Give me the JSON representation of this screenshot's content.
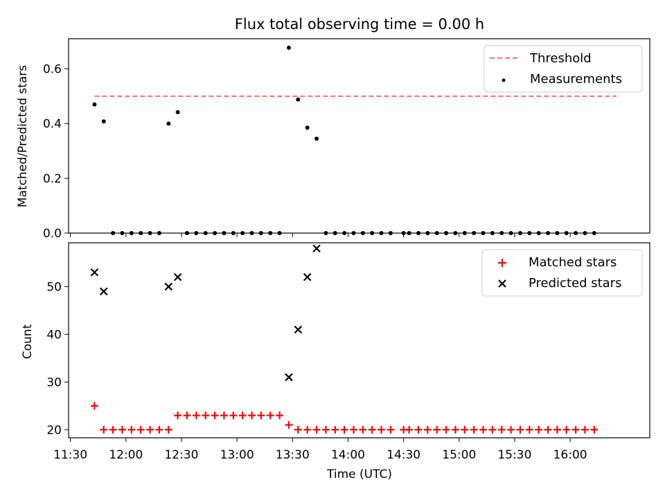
{
  "chart_data": {
    "type": "scatter",
    "title": "Flux total observing time = 0.00 h",
    "xlabel": "Time (UTC)",
    "x_tick_labels": [
      "11:30",
      "12:00",
      "12:30",
      "13:00",
      "13:30",
      "14:00",
      "14:30",
      "15:00",
      "15:30",
      "16:00"
    ],
    "x_tick_values": [
      "11:30",
      "12:00",
      "12:30",
      "13:00",
      "13:30",
      "14:00",
      "14:30",
      "15:00",
      "15:30",
      "16:00"
    ],
    "xlim": [
      "11:29",
      "16:43"
    ],
    "top_panel": {
      "ylabel": "Matched/Predicted stars",
      "ylim": [
        0,
        0.71
      ],
      "y_ticks": [
        0.0,
        0.2,
        0.4,
        0.6
      ],
      "y_tick_labels": [
        "0.0",
        "0.2",
        "0.4",
        "0.6"
      ],
      "legend_position": "upper right",
      "threshold": {
        "name": "Threshold",
        "value": 0.5,
        "x_start": "11:43",
        "x_end": "16:25",
        "color": "#ff6b6b",
        "style": "dashed"
      },
      "measurements": {
        "name": "Measurements",
        "color": "#000000",
        "points": [
          [
            "11:43",
            0.47
          ],
          [
            "11:48",
            0.408
          ],
          [
            "11:53",
            0.0
          ],
          [
            "11:58",
            0.0
          ],
          [
            "12:03",
            0.0
          ],
          [
            "12:08",
            0.0
          ],
          [
            "12:13",
            0.0
          ],
          [
            "12:18",
            0.0
          ],
          [
            "12:23",
            0.4
          ],
          [
            "12:28",
            0.442
          ],
          [
            "12:33",
            0.0
          ],
          [
            "12:38",
            0.0
          ],
          [
            "12:43",
            0.0
          ],
          [
            "12:48",
            0.0
          ],
          [
            "12:53",
            0.0
          ],
          [
            "12:58",
            0.0
          ],
          [
            "13:03",
            0.0
          ],
          [
            "13:08",
            0.0
          ],
          [
            "13:13",
            0.0
          ],
          [
            "13:18",
            0.0
          ],
          [
            "13:23",
            0.0
          ],
          [
            "13:28",
            0.677
          ],
          [
            "13:33",
            0.488
          ],
          [
            "13:38",
            0.385
          ],
          [
            "13:43",
            0.345
          ],
          [
            "13:48",
            0.0
          ],
          [
            "13:53",
            0.0
          ],
          [
            "13:58",
            0.0
          ],
          [
            "14:03",
            0.0
          ],
          [
            "14:08",
            0.0
          ],
          [
            "14:13",
            0.0
          ],
          [
            "14:18",
            0.0
          ],
          [
            "14:23",
            0.0
          ],
          [
            "14:30",
            0.0
          ],
          [
            "14:33",
            0.0
          ],
          [
            "14:38",
            0.0
          ],
          [
            "14:43",
            0.0
          ],
          [
            "14:48",
            0.0
          ],
          [
            "14:53",
            0.0
          ],
          [
            "14:58",
            0.0
          ],
          [
            "15:03",
            0.0
          ],
          [
            "15:08",
            0.0
          ],
          [
            "15:13",
            0.0
          ],
          [
            "15:18",
            0.0
          ],
          [
            "15:23",
            0.0
          ],
          [
            "15:28",
            0.0
          ],
          [
            "15:33",
            0.0
          ],
          [
            "15:38",
            0.0
          ],
          [
            "15:43",
            0.0
          ],
          [
            "15:48",
            0.0
          ],
          [
            "15:53",
            0.0
          ],
          [
            "15:58",
            0.0
          ],
          [
            "16:03",
            0.0
          ],
          [
            "16:08",
            0.0
          ],
          [
            "16:13",
            0.0
          ]
        ]
      }
    },
    "bottom_panel": {
      "ylabel": "Count",
      "ylim": [
        18.3,
        59.2
      ],
      "y_ticks": [
        20,
        30,
        40,
        50
      ],
      "y_tick_labels": [
        "20",
        "30",
        "40",
        "50"
      ],
      "legend_position": "upper right",
      "matched": {
        "name": "Matched stars",
        "color": "#ff0000",
        "marker": "+",
        "points": [
          [
            "11:43",
            25
          ],
          [
            "11:48",
            20
          ],
          [
            "11:53",
            20
          ],
          [
            "11:58",
            20
          ],
          [
            "12:03",
            20
          ],
          [
            "12:08",
            20
          ],
          [
            "12:13",
            20
          ],
          [
            "12:18",
            20
          ],
          [
            "12:23",
            20
          ],
          [
            "12:28",
            23
          ],
          [
            "12:33",
            23
          ],
          [
            "12:38",
            23
          ],
          [
            "12:43",
            23
          ],
          [
            "12:48",
            23
          ],
          [
            "12:53",
            23
          ],
          [
            "12:58",
            23
          ],
          [
            "13:03",
            23
          ],
          [
            "13:08",
            23
          ],
          [
            "13:13",
            23
          ],
          [
            "13:18",
            23
          ],
          [
            "13:23",
            23
          ],
          [
            "13:28",
            21
          ],
          [
            "13:33",
            20
          ],
          [
            "13:38",
            20
          ],
          [
            "13:43",
            20
          ],
          [
            "13:48",
            20
          ],
          [
            "13:53",
            20
          ],
          [
            "13:58",
            20
          ],
          [
            "14:03",
            20
          ],
          [
            "14:08",
            20
          ],
          [
            "14:13",
            20
          ],
          [
            "14:18",
            20
          ],
          [
            "14:23",
            20
          ],
          [
            "14:30",
            20
          ],
          [
            "14:33",
            20
          ],
          [
            "14:38",
            20
          ],
          [
            "14:43",
            20
          ],
          [
            "14:48",
            20
          ],
          [
            "14:53",
            20
          ],
          [
            "14:58",
            20
          ],
          [
            "15:03",
            20
          ],
          [
            "15:08",
            20
          ],
          [
            "15:13",
            20
          ],
          [
            "15:18",
            20
          ],
          [
            "15:23",
            20
          ],
          [
            "15:28",
            20
          ],
          [
            "15:33",
            20
          ],
          [
            "15:38",
            20
          ],
          [
            "15:43",
            20
          ],
          [
            "15:48",
            20
          ],
          [
            "15:53",
            20
          ],
          [
            "15:58",
            20
          ],
          [
            "16:03",
            20
          ],
          [
            "16:08",
            20
          ],
          [
            "16:13",
            20
          ]
        ]
      },
      "predicted": {
        "name": "Predicted stars",
        "color": "#000000",
        "marker": "x",
        "points": [
          [
            "11:43",
            53
          ],
          [
            "11:48",
            49
          ],
          [
            "12:23",
            50
          ],
          [
            "12:28",
            52
          ],
          [
            "13:28",
            31
          ],
          [
            "13:33",
            41
          ],
          [
            "13:38",
            52
          ],
          [
            "13:43",
            58
          ]
        ]
      }
    }
  }
}
